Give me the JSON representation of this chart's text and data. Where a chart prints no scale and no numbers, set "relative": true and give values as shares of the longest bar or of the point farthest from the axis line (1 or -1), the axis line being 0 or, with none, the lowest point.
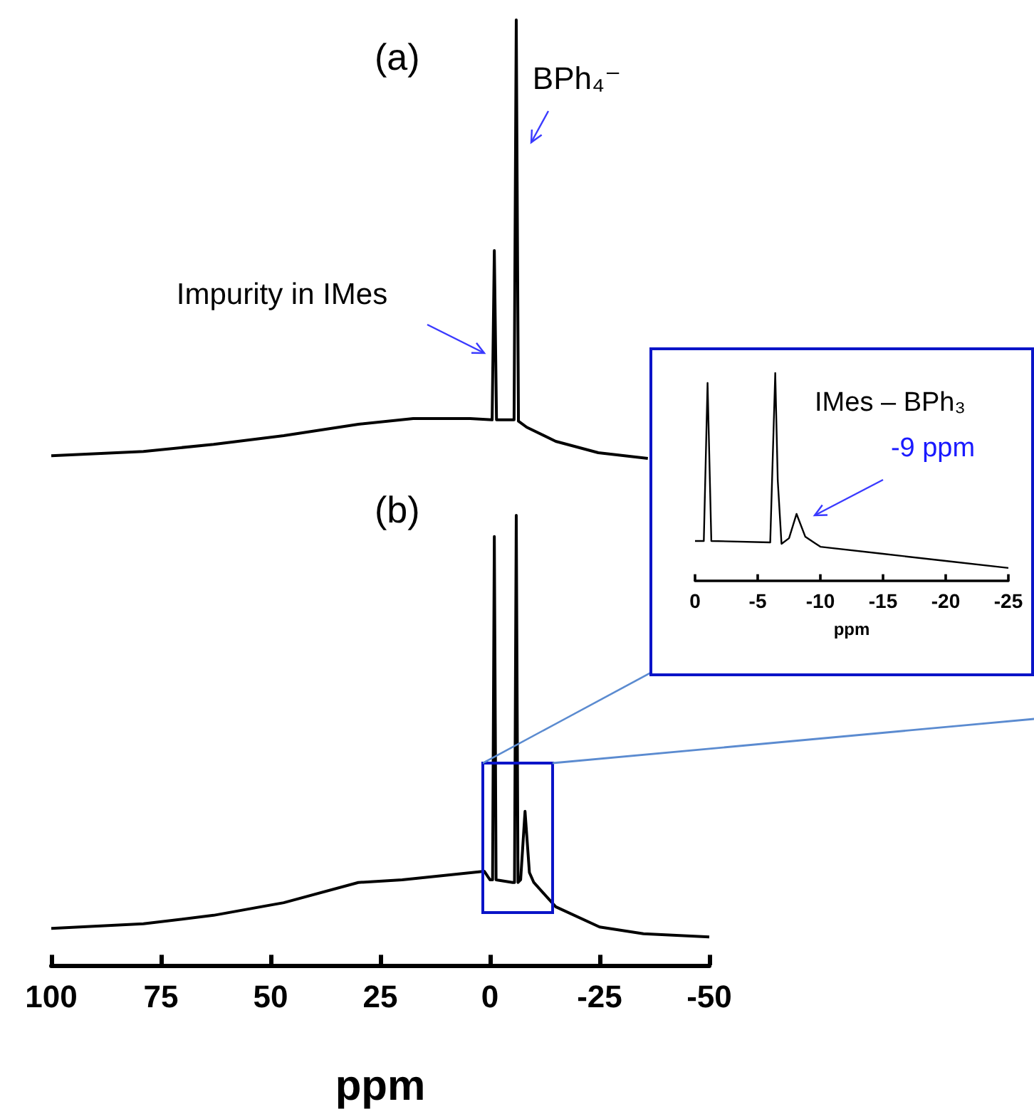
{
  "chart_data": [
    {
      "type": "line",
      "title": "(a)",
      "relative": true,
      "xlim": [
        100,
        -50
      ],
      "tick_labels": false,
      "grid": false,
      "marker": "none",
      "line_style": "solid",
      "series": [
        {
          "color": "#000000",
          "x": [
            100,
            79,
            63,
            47,
            30,
            17.5,
            4.5,
            -0.5,
            -1,
            -1.5,
            -5.5,
            -6,
            -6.5,
            -8.4,
            -15,
            -24.7,
            -36
          ],
          "values": [
            0.006,
            0.016,
            0.032,
            0.052,
            0.078,
            0.091,
            0.091,
            0.088,
            0.474,
            0.088,
            0.088,
            1,
            0.085,
            0.071,
            0.039,
            0.013,
            0
          ]
        }
      ],
      "annotations": [
        "Impurity in IMes",
        "BPh₄⁻"
      ]
    },
    {
      "type": "line",
      "title": "(b)",
      "relative": true,
      "xlim": [
        100,
        -50
      ],
      "xticks": [
        100,
        75,
        50,
        25,
        0,
        -25,
        -50
      ],
      "xlabel": "ppm",
      "grid": false,
      "marker": "none",
      "line_style": "solid",
      "series": [
        {
          "color": "#000000",
          "x": [
            100,
            79,
            63,
            47,
            30,
            20,
            1.3,
            0,
            -0.6,
            -1,
            -1.4,
            -5.2,
            -5.6,
            -6,
            -6.4,
            -7,
            -8,
            -9,
            -10,
            -15,
            -25,
            -35,
            -50
          ],
          "values": [
            0.082,
            0.092,
            0.111,
            0.139,
            0.184,
            0.19,
            0.209,
            0.19,
            0.19,
            0.953,
            0.19,
            0.184,
            0.184,
            1,
            0.184,
            0.19,
            0.342,
            0.206,
            0.184,
            0.13,
            0.085,
            0.07,
            0.063
          ]
        }
      ]
    },
    {
      "type": "line",
      "relative": true,
      "xlim": [
        0,
        -25
      ],
      "xticks": [
        0,
        -5,
        -10,
        -15,
        -20,
        -25
      ],
      "xlabel": "ppm",
      "grid": false,
      "marker": "none",
      "line_style": "solid",
      "series": [
        {
          "color": "#000000",
          "x": [
            0,
            -0.7,
            -1,
            -1.3,
            -6,
            -6.4,
            -6.6,
            -6.9,
            -7.5,
            -8.1,
            -8.8,
            -10,
            -15,
            -20,
            -25
          ],
          "values": [
            0.192,
            0.192,
            0.952,
            0.192,
            0.185,
            1,
            0.484,
            0.178,
            0.205,
            0.322,
            0.212,
            0.164,
            0.13,
            0.096,
            0.062
          ]
        }
      ],
      "annotations": [
        "IMes – BPh₃",
        "-9 ppm"
      ]
    }
  ]
}
